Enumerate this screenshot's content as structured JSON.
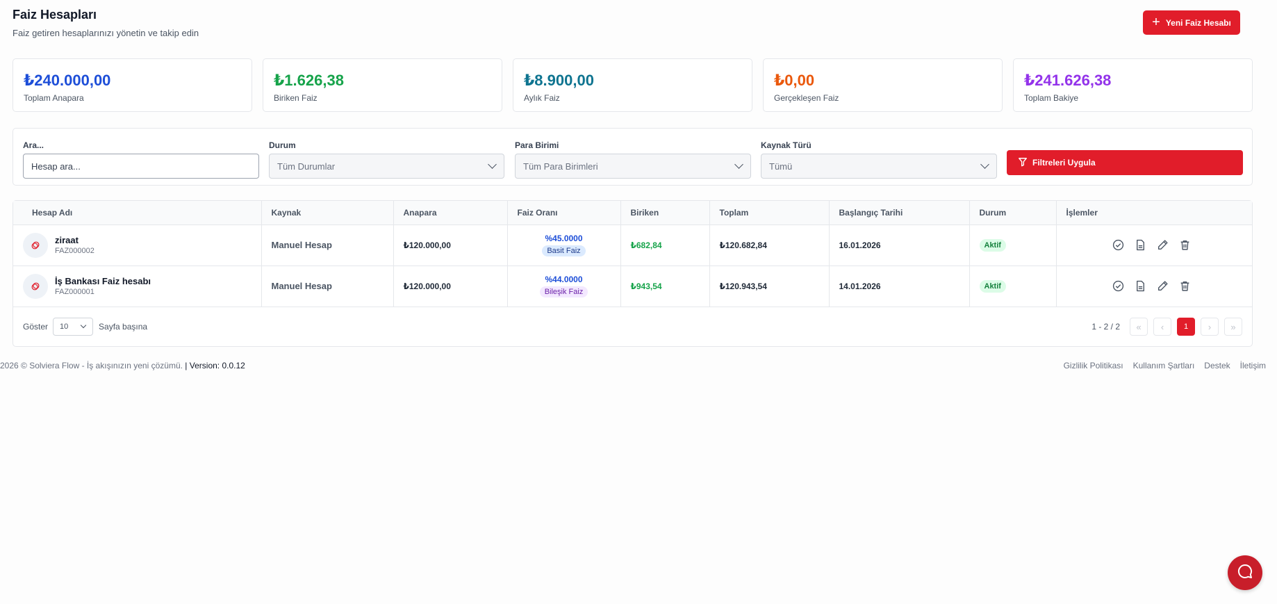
{
  "header": {
    "title": "Faiz Hesapları",
    "subtitle": "Faiz getiren hesaplarınızı yönetin ve takip edin",
    "new_button": "Yeni Faiz Hesabı"
  },
  "stats": [
    {
      "value": "₺240.000,00",
      "label": "Toplam Anapara",
      "color": "#1d4ed8"
    },
    {
      "value": "₺1.626,38",
      "label": "Biriken Faiz",
      "color": "#16a34a"
    },
    {
      "value": "₺8.900,00",
      "label": "Aylık Faiz",
      "color": "#0e7490"
    },
    {
      "value": "₺0,00",
      "label": "Gerçekleşen Faiz",
      "color": "#ea580c"
    },
    {
      "value": "₺241.626,38",
      "label": "Toplam Bakiye",
      "color": "#9333ea"
    }
  ],
  "filters": {
    "search_label": "Ara...",
    "search_placeholder": "Hesap ara...",
    "status_label": "Durum",
    "status_value": "Tüm Durumlar",
    "currency_label": "Para Birimi",
    "currency_value": "Tüm Para Birimleri",
    "source_label": "Kaynak Türü",
    "source_value": "Tümü",
    "apply_button": "Filtreleri Uygula"
  },
  "table": {
    "columns": [
      "Hesap Adı",
      "Kaynak",
      "Anapara",
      "Faiz Oranı",
      "Biriken",
      "Toplam",
      "Başlangıç Tarihi",
      "Durum",
      "İşlemler"
    ],
    "rows": [
      {
        "name": "ziraat",
        "code": "FAZ000002",
        "source": "Manuel Hesap",
        "principal": "₺120.000,00",
        "rate": "%45.0000",
        "type": "Basit Faiz",
        "accrued": "₺682,84",
        "total": "₺120.682,84",
        "start": "16.01.2026",
        "status": "Aktif"
      },
      {
        "name": "İş Bankası Faiz hesabı",
        "code": "FAZ000001",
        "source": "Manuel Hesap",
        "principal": "₺120.000,00",
        "rate": "%44.0000",
        "type": "Bileşik Faiz",
        "accrued": "₺943,54",
        "total": "₺120.943,54",
        "start": "14.01.2026",
        "status": "Aktif"
      }
    ]
  },
  "pagination": {
    "show_label": "Göster",
    "page_size": "10",
    "per_page_label": "Sayfa başına",
    "range": "1 - 2 / 2",
    "current_page": "1"
  },
  "footer": {
    "copyright": "2026 ©  Solviera Flow - İş akışınızın yeni çözümü.",
    "separator": "|",
    "version": "Version: 0.0.12",
    "links": [
      "Gizlilik Politikası",
      "Kullanım Şartları",
      "Destek",
      "İletişim"
    ]
  },
  "colors": {
    "accent": "#e11d2a"
  }
}
